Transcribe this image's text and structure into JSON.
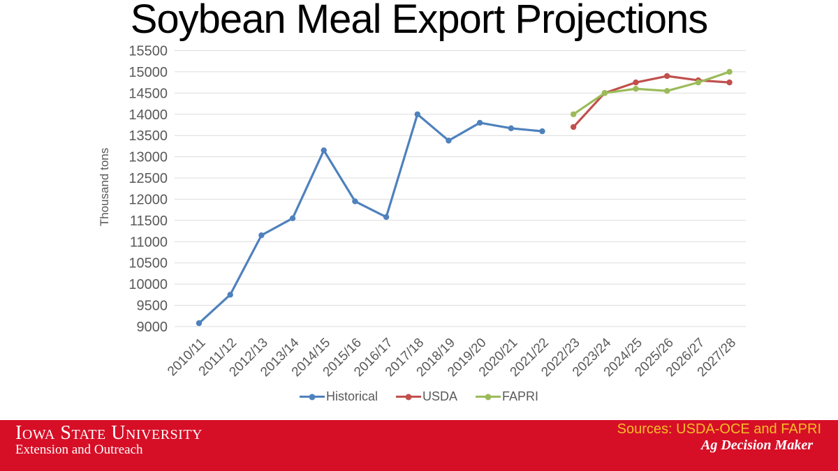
{
  "title": "Soybean Meal Export Projections",
  "chart_data": {
    "type": "line",
    "title": "Soybean Meal Export Projections",
    "xlabel": "",
    "ylabel": "Thousand tons",
    "ylim": [
      9000,
      15500
    ],
    "ytick_step": 500,
    "grid": true,
    "legend_position": "bottom",
    "categories": [
      "2010/11",
      "2011/12",
      "2012/13",
      "2013/14",
      "2014/15",
      "2015/16",
      "2016/17",
      "2017/18",
      "2018/19",
      "2019/20",
      "2020/21",
      "2021/22",
      "2022/23",
      "2023/24",
      "2024/25",
      "2025/26",
      "2026/27",
      "2027/28"
    ],
    "series": [
      {
        "name": "Historical",
        "color": "#4F81BD",
        "values": [
          9080,
          9750,
          11150,
          11550,
          13150,
          11950,
          11580,
          14000,
          13380,
          13800,
          13670,
          13600,
          null,
          null,
          null,
          null,
          null,
          null
        ]
      },
      {
        "name": "USDA",
        "color": "#C0504D",
        "values": [
          null,
          null,
          null,
          null,
          null,
          null,
          null,
          null,
          null,
          null,
          null,
          null,
          13700,
          14500,
          14750,
          14900,
          14800,
          14750
        ]
      },
      {
        "name": "FAPRI",
        "color": "#9BBB59",
        "values": [
          null,
          null,
          null,
          null,
          null,
          null,
          null,
          null,
          null,
          null,
          null,
          null,
          14000,
          14500,
          14600,
          14550,
          14750,
          15000
        ]
      }
    ]
  },
  "footer": {
    "university": "Iowa State University",
    "unit": "Extension and Outreach",
    "sources": "Sources: USDA-OCE and FAPRI",
    "brand": "Ag Decision Maker",
    "banner_color": "#d60f27",
    "sources_color": "#f6be27"
  }
}
